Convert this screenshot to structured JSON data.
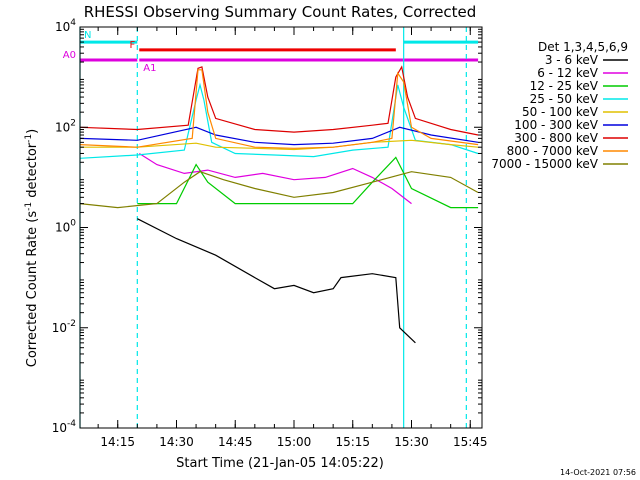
{
  "chart_data": {
    "type": "line",
    "title": "RHESSI Observing Summary Count Rates, Corrected",
    "xlabel": "Start Time (21-Jan-05 14:05:22)",
    "ylabel": "Corrected Count Rate (s-1 detector-1)",
    "ylabel_parts": {
      "main": "Corrected Count Rate (s",
      "sup1": "-1",
      "mid": " detector",
      "sup2": "-1",
      "end": ")"
    },
    "y_scale": "log",
    "ylim": [
      0.0001,
      10000
    ],
    "y_ticks": [
      {
        "value": 0.0001,
        "base": "10",
        "exp": "-4"
      },
      {
        "value": 0.01,
        "base": "10",
        "exp": "-2"
      },
      {
        "value": 1,
        "base": "10",
        "exp": "0"
      },
      {
        "value": 100,
        "base": "10",
        "exp": "2"
      },
      {
        "value": 10000,
        "base": "10",
        "exp": "4"
      }
    ],
    "xlim": [
      "14:05:22",
      "15:48:00"
    ],
    "x_ticks": [
      "14:15",
      "14:30",
      "14:45",
      "15:00",
      "15:15",
      "15:30",
      "15:45"
    ],
    "legend_title": "Det 1,3,4,5,6,9",
    "legend_placement": "right",
    "series": [
      {
        "name": "3 - 6 keV",
        "color": "#000000",
        "points": [
          [
            "14:20:00",
            1.5
          ],
          [
            "14:30:00",
            0.6
          ],
          [
            "14:40:00",
            0.28
          ],
          [
            "14:50:00",
            0.1
          ],
          [
            "14:55:00",
            0.06
          ],
          [
            "15:00:00",
            0.07
          ],
          [
            "15:05:00",
            0.05
          ],
          [
            "15:10:00",
            0.06
          ],
          [
            "15:12:00",
            0.1
          ],
          [
            "15:20:00",
            0.12
          ],
          [
            "15:26:00",
            0.1
          ],
          [
            "15:27:00",
            0.01
          ],
          [
            "15:31:00",
            0.005
          ]
        ]
      },
      {
        "name": "6 - 12 keV",
        "color": "#e000e0",
        "points": [
          [
            "14:20:30",
            30
          ],
          [
            "14:25:00",
            18
          ],
          [
            "14:32:00",
            12
          ],
          [
            "14:38:00",
            14
          ],
          [
            "14:45:00",
            10
          ],
          [
            "14:52:00",
            12
          ],
          [
            "15:00:00",
            9
          ],
          [
            "15:08:00",
            10
          ],
          [
            "15:15:00",
            15
          ],
          [
            "15:20:00",
            10
          ],
          [
            "15:25:00",
            6
          ],
          [
            "15:30:00",
            3
          ]
        ]
      },
      {
        "name": "12 - 25 keV",
        "color": "#00cc00",
        "points": [
          [
            "14:20:00",
            3
          ],
          [
            "14:30:00",
            3
          ],
          [
            "14:35:00",
            18
          ],
          [
            "14:38:00",
            8
          ],
          [
            "14:45:00",
            3
          ],
          [
            "15:00:00",
            3
          ],
          [
            "15:10:00",
            3
          ],
          [
            "15:15:00",
            3
          ],
          [
            "15:20:00",
            8
          ],
          [
            "15:26:00",
            25
          ],
          [
            "15:30:00",
            6
          ],
          [
            "15:40:00",
            2.5
          ],
          [
            "15:47:00",
            2.5
          ]
        ]
      },
      {
        "name": "25 - 50 keV",
        "color": "#00e8e8",
        "points": [
          [
            "14:05:22",
            24
          ],
          [
            "14:20:00",
            28
          ],
          [
            "14:32:00",
            35
          ],
          [
            "14:35:00",
            350
          ],
          [
            "14:36:00",
            700
          ],
          [
            "14:37:00",
            350
          ],
          [
            "14:39:00",
            50
          ],
          [
            "14:45:00",
            30
          ],
          [
            "14:55:00",
            28
          ],
          [
            "15:05:00",
            26
          ],
          [
            "15:15:00",
            35
          ],
          [
            "15:24:00",
            40
          ],
          [
            "15:26:30",
            700
          ],
          [
            "15:28:00",
            250
          ],
          [
            "15:31:00",
            55
          ],
          [
            "15:40:00",
            45
          ],
          [
            "15:47:00",
            30
          ]
        ]
      },
      {
        "name": "50 - 100 keV",
        "color": "#e0c000",
        "points": [
          [
            "14:05:22",
            40
          ],
          [
            "14:20:00",
            40
          ],
          [
            "14:35:00",
            48
          ],
          [
            "14:40:00",
            40
          ],
          [
            "14:50:00",
            38
          ],
          [
            "15:00:00",
            36
          ],
          [
            "15:10:00",
            40
          ],
          [
            "15:20:00",
            50
          ],
          [
            "15:30:00",
            55
          ],
          [
            "15:40:00",
            45
          ],
          [
            "15:47:00",
            40
          ]
        ]
      },
      {
        "name": "100 - 300 keV",
        "color": "#0000dd",
        "points": [
          [
            "14:05:22",
            60
          ],
          [
            "14:20:00",
            55
          ],
          [
            "14:35:00",
            100
          ],
          [
            "14:40:00",
            70
          ],
          [
            "14:50:00",
            50
          ],
          [
            "15:00:00",
            45
          ],
          [
            "15:10:00",
            48
          ],
          [
            "15:20:00",
            60
          ],
          [
            "15:27:00",
            100
          ],
          [
            "15:35:00",
            70
          ],
          [
            "15:47:00",
            50
          ]
        ]
      },
      {
        "name": "300 - 800 keV",
        "color": "#dd0000",
        "points": [
          [
            "14:05:22",
            100
          ],
          [
            "14:20:00",
            90
          ],
          [
            "14:33:00",
            110
          ],
          [
            "14:35:30",
            1500
          ],
          [
            "14:36:30",
            1600
          ],
          [
            "14:38:00",
            400
          ],
          [
            "14:40:00",
            150
          ],
          [
            "14:50:00",
            90
          ],
          [
            "15:00:00",
            80
          ],
          [
            "15:10:00",
            90
          ],
          [
            "15:20:00",
            110
          ],
          [
            "15:24:00",
            120
          ],
          [
            "15:26:00",
            1000
          ],
          [
            "15:27:30",
            1600
          ],
          [
            "15:29:00",
            400
          ],
          [
            "15:31:00",
            150
          ],
          [
            "15:40:00",
            90
          ],
          [
            "15:47:00",
            70
          ]
        ]
      },
      {
        "name": "800 - 7000 keV",
        "color": "#ff8800",
        "points": [
          [
            "14:05:22",
            45
          ],
          [
            "14:20:00",
            40
          ],
          [
            "14:34:00",
            60
          ],
          [
            "14:35:30",
            1400
          ],
          [
            "14:36:30",
            1400
          ],
          [
            "14:38:00",
            200
          ],
          [
            "14:40:00",
            60
          ],
          [
            "14:50:00",
            40
          ],
          [
            "15:00:00",
            38
          ],
          [
            "15:10:00",
            40
          ],
          [
            "15:20:00",
            50
          ],
          [
            "15:25:00",
            60
          ],
          [
            "15:26:30",
            1200
          ],
          [
            "15:28:00",
            800
          ],
          [
            "15:30:00",
            100
          ],
          [
            "15:35:00",
            60
          ],
          [
            "15:47:00",
            45
          ]
        ]
      },
      {
        "name": "7000 - 15000 keV",
        "color": "#808000",
        "points": [
          [
            "14:05:22",
            3
          ],
          [
            "14:15:00",
            2.5
          ],
          [
            "14:25:00",
            3
          ],
          [
            "14:32:00",
            8
          ],
          [
            "14:36:00",
            13
          ],
          [
            "14:42:00",
            9
          ],
          [
            "14:50:00",
            6
          ],
          [
            "15:00:00",
            4
          ],
          [
            "15:10:00",
            5
          ],
          [
            "15:20:00",
            8
          ],
          [
            "15:30:00",
            13
          ],
          [
            "15:40:00",
            10
          ],
          [
            "15:47:00",
            5
          ]
        ]
      }
    ],
    "annotations": [
      {
        "label": "N",
        "color": "#00e8e8",
        "segments": [
          [
            "14:05:22",
            "14:20:00"
          ],
          [
            "15:28:00",
            "15:47:00"
          ]
        ],
        "level": 5000
      },
      {
        "label": "F",
        "color": "#ee0000",
        "segments": [
          [
            "14:20:30",
            "15:26:00"
          ]
        ],
        "level": 3500
      },
      {
        "label": "A0",
        "color": "#dd00dd",
        "segments": [
          [
            "14:05:22",
            "14:20:00"
          ]
        ],
        "level": 2200
      },
      {
        "label": "A1",
        "color": "#dd00dd",
        "segments": [
          [
            "14:20:30",
            "15:47:00"
          ]
        ],
        "level": 2200
      }
    ],
    "vertical_lines": [
      {
        "time": "14:05:22",
        "style": "solid",
        "color": "#00e8e8"
      },
      {
        "time": "14:20:00",
        "style": "dashed",
        "color": "#00e8e8"
      },
      {
        "time": "15:28:00",
        "style": "solid",
        "color": "#00e8e8"
      },
      {
        "time": "15:44:00",
        "style": "dashed",
        "color": "#00e8e8"
      }
    ],
    "footer_timestamp": "14-Oct-2021 07:56"
  }
}
